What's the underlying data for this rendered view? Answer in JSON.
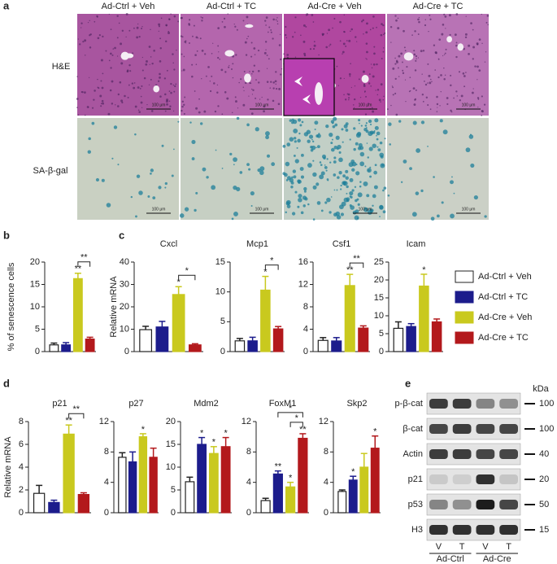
{
  "figure": {
    "panel_labels": [
      "a",
      "b",
      "c",
      "d",
      "e"
    ],
    "legend": [
      {
        "name": "Ad-Ctrl + Veh",
        "color": "#ffffff"
      },
      {
        "name": "Ad-Ctrl + TC",
        "color": "#1c1c8c"
      },
      {
        "name": "Ad-Cre + Veh",
        "color": "#c9c91e"
      },
      {
        "name": "Ad-Cre + TC",
        "color": "#b3191c"
      }
    ]
  },
  "histology": {
    "columns": [
      "Ad-Ctrl + Veh",
      "Ad-Ctrl + TC",
      "Ad-Cre + Veh",
      "Ad-Cre + TC"
    ],
    "rows": [
      "H&E",
      "SA-β-gal"
    ],
    "scale_bar": "100 μm"
  },
  "chart_data": [
    {
      "type": "bar",
      "ylabel": "% of senescence cells",
      "values": [
        1.5,
        1.5,
        16.3,
        2.8
      ],
      "errors": [
        0.4,
        0.5,
        1.2,
        0.4
      ],
      "ylim": [
        0,
        20
      ],
      "yticks": [
        0,
        5,
        10,
        15,
        20
      ],
      "significance": [
        null,
        null,
        "**",
        null
      ],
      "brackets": [
        {
          "between": [
            2,
            3
          ],
          "text": "**"
        }
      ]
    },
    {
      "type": "bar",
      "title": "Cxcl",
      "ylabel": "Relative mRNA",
      "values": [
        9.8,
        11,
        25.5,
        3
      ],
      "errors": [
        1.5,
        2.5,
        3.5,
        0.5
      ],
      "ylim": [
        0,
        40
      ],
      "yticks": [
        0,
        10,
        20,
        30,
        40
      ],
      "significance": [
        null,
        null,
        "*",
        null
      ],
      "brackets": [
        {
          "between": [
            2,
            3
          ],
          "text": "*"
        }
      ]
    },
    {
      "type": "bar",
      "title": "Mcp1",
      "values": [
        1.8,
        1.8,
        10.3,
        3.8
      ],
      "errors": [
        0.4,
        0.6,
        2.3,
        0.4
      ],
      "ylim": [
        0,
        15
      ],
      "yticks": [
        0,
        5,
        10,
        15
      ],
      "significance": [
        null,
        null,
        "*",
        null
      ],
      "brackets": [
        {
          "between": [
            2,
            3
          ],
          "text": "*"
        }
      ]
    },
    {
      "type": "bar",
      "title": "Csf1",
      "values": [
        2,
        1.9,
        11.8,
        4.2
      ],
      "errors": [
        0.5,
        0.6,
        2,
        0.4
      ],
      "ylim": [
        0,
        16
      ],
      "yticks": [
        0,
        4,
        8,
        12,
        16
      ],
      "significance": [
        null,
        null,
        "**",
        null
      ],
      "brackets": [
        {
          "between": [
            2,
            3
          ],
          "text": "**"
        }
      ]
    },
    {
      "type": "bar",
      "title": "Icam",
      "values": [
        6.5,
        7,
        18.3,
        8.3
      ],
      "errors": [
        1.8,
        0.8,
        3.3,
        0.8
      ],
      "ylim": [
        0,
        25
      ],
      "yticks": [
        0,
        5,
        10,
        15,
        20,
        25
      ],
      "significance": [
        null,
        null,
        "*",
        null
      ],
      "brackets": []
    },
    {
      "type": "bar",
      "title": "p21",
      "ylabel": "Relative mRNA",
      "values": [
        1.7,
        0.9,
        6.9,
        1.6
      ],
      "errors": [
        0.7,
        0.2,
        0.8,
        0.15
      ],
      "ylim": [
        0,
        8
      ],
      "yticks": [
        0,
        2,
        4,
        6,
        8
      ],
      "significance": [
        null,
        null,
        "**",
        null
      ],
      "brackets": [
        {
          "between": [
            2,
            3
          ],
          "text": "**"
        }
      ]
    },
    {
      "type": "bar",
      "title": "p27",
      "values": [
        7.3,
        6.7,
        10,
        7.3
      ],
      "errors": [
        0.6,
        1.3,
        0.4,
        1.2
      ],
      "ylim": [
        0,
        12
      ],
      "yticks": [
        0,
        4,
        8,
        12
      ],
      "significance": [
        null,
        null,
        "*",
        null
      ],
      "brackets": []
    },
    {
      "type": "bar",
      "title": "Mdm2",
      "values": [
        6.8,
        15,
        13,
        14.5
      ],
      "errors": [
        1,
        1.5,
        1.5,
        2
      ],
      "ylim": [
        0,
        20
      ],
      "yticks": [
        0,
        5,
        10,
        15,
        20
      ],
      "significance": [
        null,
        "*",
        "*",
        "*"
      ],
      "brackets": []
    },
    {
      "type": "bar",
      "title": "FoxM1",
      "values": [
        1.6,
        5.1,
        3.4,
        9.8
      ],
      "errors": [
        0.3,
        0.4,
        0.6,
        0.6
      ],
      "ylim": [
        0,
        12
      ],
      "yticks": [
        0,
        4,
        8,
        12
      ],
      "significance": [
        null,
        "**",
        "*",
        "**"
      ],
      "brackets": [
        {
          "between": [
            2,
            3
          ],
          "text": "*"
        },
        {
          "between": [
            1,
            3
          ],
          "text": "*"
        }
      ]
    },
    {
      "type": "bar",
      "title": "Skp2",
      "values": [
        2.8,
        4.3,
        6,
        8.5
      ],
      "errors": [
        0.2,
        0.5,
        1.8,
        1.6
      ],
      "ylim": [
        0,
        12
      ],
      "yticks": [
        0,
        4,
        8,
        12
      ],
      "significance": [
        null,
        "*",
        null,
        "*"
      ],
      "brackets": []
    }
  ],
  "western_blot": {
    "unit": "kDa",
    "rows": [
      {
        "label": "p-β-cat",
        "marker": "100"
      },
      {
        "label": "β-cat",
        "marker": "100"
      },
      {
        "label": "Actin",
        "marker": "40"
      },
      {
        "label": "p21",
        "marker": "20"
      },
      {
        "label": "p53",
        "marker": "50"
      },
      {
        "label": "H3",
        "marker": "15"
      }
    ],
    "lanes": [
      "V",
      "T",
      "V",
      "T"
    ],
    "groups": [
      "Ad-Ctrl",
      "Ad-Cre"
    ]
  }
}
